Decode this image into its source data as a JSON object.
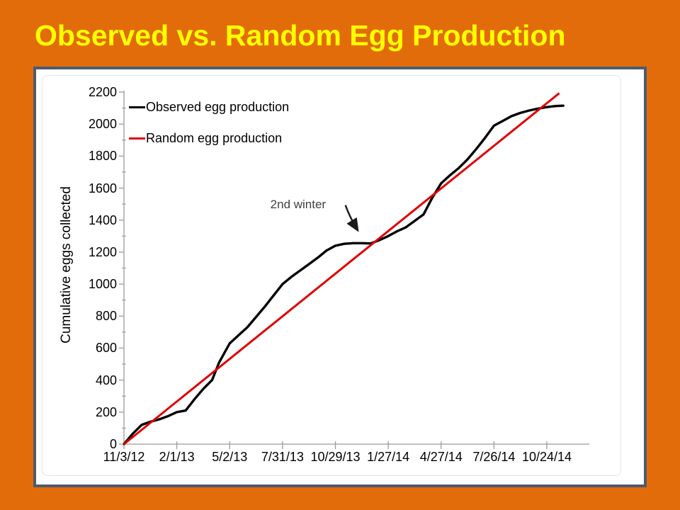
{
  "slide": {
    "title": "Observed vs. Random Egg Production"
  },
  "colors": {
    "background": "#E36C0A",
    "title": "#FFFF00",
    "panel_border": "#4C5B6E",
    "axis": "#9B9B9B",
    "text": "#000000",
    "annotation_text": "#3F3F3F"
  },
  "chart_data": {
    "type": "line",
    "title": "",
    "xlabel": "",
    "ylabel": "Cumulative eggs collected",
    "ylim": [
      0,
      2200
    ],
    "y_tick_step": 200,
    "y_minor_tick_step": 100,
    "grid": false,
    "legend_position": "top-left-inside",
    "x_tick_labels": [
      "11/3/12",
      "2/1/13",
      "5/2/13",
      "7/31/13",
      "10/29/13",
      "1/27/14",
      "4/27/14",
      "7/26/14",
      "10/24/14"
    ],
    "x_tick_days": [
      0,
      90,
      180,
      270,
      360,
      450,
      540,
      630,
      720
    ],
    "x_range_days": [
      0,
      748
    ],
    "series": [
      {
        "name": "Observed egg production",
        "color": "#000000",
        "points": [
          [
            0,
            0
          ],
          [
            15,
            65
          ],
          [
            30,
            120
          ],
          [
            45,
            140
          ],
          [
            60,
            155
          ],
          [
            75,
            175
          ],
          [
            90,
            200
          ],
          [
            105,
            210
          ],
          [
            120,
            280
          ],
          [
            135,
            345
          ],
          [
            150,
            400
          ],
          [
            162,
            510
          ],
          [
            180,
            630
          ],
          [
            195,
            680
          ],
          [
            210,
            730
          ],
          [
            225,
            795
          ],
          [
            240,
            860
          ],
          [
            255,
            930
          ],
          [
            270,
            1000
          ],
          [
            285,
            1045
          ],
          [
            300,
            1085
          ],
          [
            315,
            1125
          ],
          [
            330,
            1165
          ],
          [
            345,
            1210
          ],
          [
            360,
            1240
          ],
          [
            375,
            1252
          ],
          [
            390,
            1256
          ],
          [
            405,
            1256
          ],
          [
            420,
            1254
          ],
          [
            435,
            1275
          ],
          [
            450,
            1300
          ],
          [
            465,
            1330
          ],
          [
            480,
            1355
          ],
          [
            495,
            1395
          ],
          [
            510,
            1435
          ],
          [
            525,
            1540
          ],
          [
            540,
            1630
          ],
          [
            555,
            1680
          ],
          [
            570,
            1725
          ],
          [
            585,
            1780
          ],
          [
            600,
            1845
          ],
          [
            615,
            1915
          ],
          [
            630,
            1990
          ],
          [
            645,
            2020
          ],
          [
            660,
            2050
          ],
          [
            675,
            2070
          ],
          [
            690,
            2085
          ],
          [
            705,
            2097
          ],
          [
            720,
            2106
          ],
          [
            735,
            2113
          ],
          [
            748,
            2115
          ]
        ]
      },
      {
        "name": "Random egg production",
        "color": "#E00000",
        "points": [
          [
            0,
            0
          ],
          [
            740,
            2190
          ]
        ]
      }
    ],
    "annotation": {
      "text": "2nd winter",
      "points_to": {
        "day": 400,
        "value": 1330
      }
    }
  }
}
